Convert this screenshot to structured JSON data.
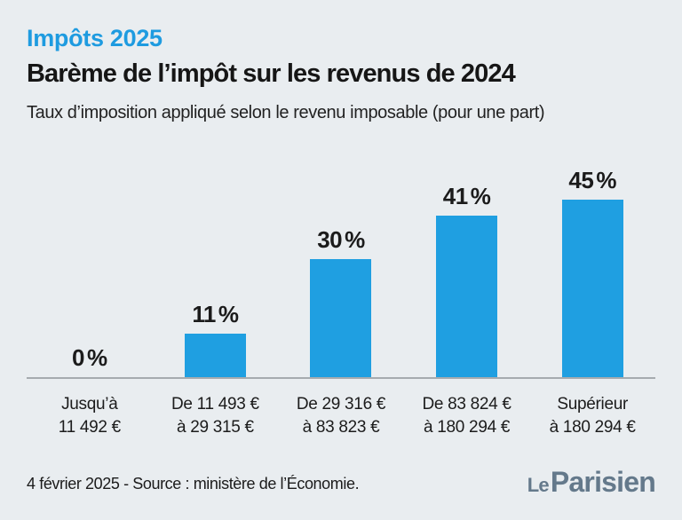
{
  "page": {
    "background": "#e9edf0"
  },
  "header": {
    "kicker": "Impôts 2025",
    "kicker_color": "#1e9be0",
    "title": "Barème de l’impôt sur les revenus de 2024",
    "subtitle": "Taux d’imposition appliqué selon le revenu imposable (pour une part)"
  },
  "chart_data": {
    "type": "bar",
    "title": "Barème de l’impôt sur les revenus de 2024",
    "xlabel": "",
    "ylabel": "",
    "unit": "%",
    "values": [
      0,
      11,
      30,
      41,
      45
    ],
    "value_labels": [
      "0",
      "11",
      "30",
      "41",
      "45"
    ],
    "categories": [
      [
        "Jusqu’à",
        "11 492 €"
      ],
      [
        "De 11 493 €",
        "à 29 315 €"
      ],
      [
        "De 29 316 €",
        "à 83 823 €"
      ],
      [
        "De 83 824 €",
        "à 180 294 €"
      ],
      [
        "Supérieur",
        "à 180 294 €"
      ]
    ],
    "ylim": [
      0,
      45
    ],
    "grid": false,
    "legend": false,
    "bar_color": "#1f9fe1",
    "axis_line_color": "#a6abaf"
  },
  "footer": {
    "source": "4 février 2025 - Source : ministère de l’Économie.",
    "logo": {
      "le": "Le",
      "parisien": "Parisien",
      "color": "#64798b"
    }
  }
}
